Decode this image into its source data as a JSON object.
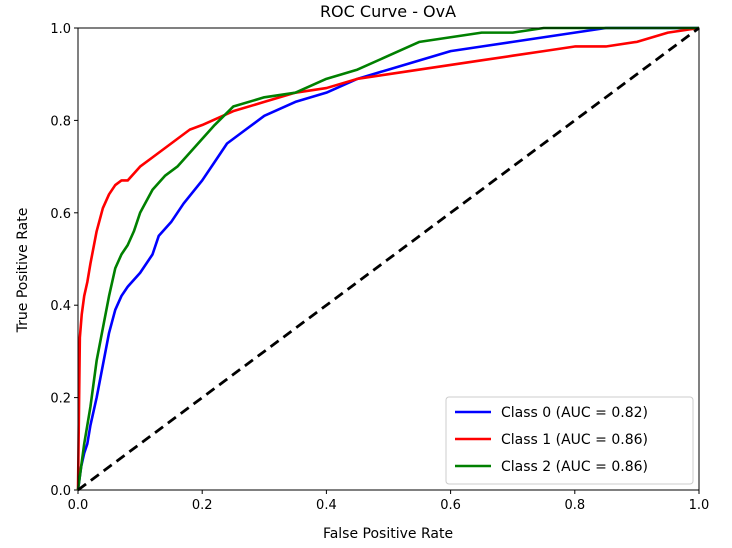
{
  "chart_data": {
    "type": "line",
    "title": "ROC Curve - OvA",
    "xlabel": "False Positive Rate",
    "ylabel": "True Positive Rate",
    "xlim": [
      0,
      1
    ],
    "ylim": [
      0,
      1
    ],
    "xticks": [
      "0.0",
      "0.2",
      "0.4",
      "0.6",
      "0.8",
      "1.0"
    ],
    "yticks": [
      "0.0",
      "0.2",
      "0.4",
      "0.6",
      "0.8",
      "1.0"
    ],
    "grid": false,
    "legend_position": "lower-right",
    "series": [
      {
        "name": "Class 0 (AUC = 0.82)",
        "color": "#0000ff",
        "x": [
          0,
          0.005,
          0.01,
          0.015,
          0.02,
          0.03,
          0.04,
          0.05,
          0.06,
          0.07,
          0.08,
          0.1,
          0.12,
          0.13,
          0.15,
          0.17,
          0.2,
          0.22,
          0.24,
          0.26,
          0.3,
          0.35,
          0.4,
          0.45,
          0.5,
          0.55,
          0.6,
          0.65,
          0.7,
          0.75,
          0.8,
          0.85,
          0.9,
          0.95,
          1.0
        ],
        "y": [
          0,
          0.05,
          0.08,
          0.1,
          0.14,
          0.2,
          0.27,
          0.34,
          0.39,
          0.42,
          0.44,
          0.47,
          0.51,
          0.55,
          0.58,
          0.62,
          0.67,
          0.71,
          0.75,
          0.77,
          0.81,
          0.84,
          0.86,
          0.89,
          0.91,
          0.93,
          0.95,
          0.96,
          0.97,
          0.98,
          0.99,
          1.0,
          1.0,
          1.0,
          1.0
        ]
      },
      {
        "name": "Class 1 (AUC = 0.86)",
        "color": "#ff0000",
        "x": [
          0,
          0.003,
          0.006,
          0.01,
          0.015,
          0.02,
          0.03,
          0.04,
          0.05,
          0.06,
          0.07,
          0.08,
          0.1,
          0.12,
          0.14,
          0.16,
          0.18,
          0.2,
          0.25,
          0.3,
          0.35,
          0.4,
          0.45,
          0.5,
          0.55,
          0.6,
          0.65,
          0.7,
          0.75,
          0.8,
          0.85,
          0.9,
          0.95,
          1.0
        ],
        "y": [
          0,
          0.33,
          0.38,
          0.42,
          0.45,
          0.49,
          0.56,
          0.61,
          0.64,
          0.66,
          0.67,
          0.67,
          0.7,
          0.72,
          0.74,
          0.76,
          0.78,
          0.79,
          0.82,
          0.84,
          0.86,
          0.87,
          0.89,
          0.9,
          0.91,
          0.92,
          0.93,
          0.94,
          0.95,
          0.96,
          0.96,
          0.97,
          0.99,
          1.0
        ]
      },
      {
        "name": "Class 2 (AUC = 0.86)",
        "color": "#008000",
        "x": [
          0,
          0.005,
          0.01,
          0.02,
          0.03,
          0.04,
          0.05,
          0.06,
          0.07,
          0.08,
          0.09,
          0.1,
          0.12,
          0.14,
          0.16,
          0.18,
          0.2,
          0.22,
          0.25,
          0.3,
          0.35,
          0.4,
          0.45,
          0.5,
          0.55,
          0.6,
          0.65,
          0.7,
          0.75,
          0.8,
          0.85,
          0.9,
          0.95,
          1.0
        ],
        "y": [
          0,
          0.05,
          0.1,
          0.18,
          0.28,
          0.35,
          0.42,
          0.48,
          0.51,
          0.53,
          0.56,
          0.6,
          0.65,
          0.68,
          0.7,
          0.73,
          0.76,
          0.79,
          0.83,
          0.85,
          0.86,
          0.89,
          0.91,
          0.94,
          0.97,
          0.98,
          0.99,
          0.99,
          1.0,
          1.0,
          1.0,
          1.0,
          1.0,
          1.0
        ]
      }
    ],
    "reference_line": {
      "x": [
        0,
        1
      ],
      "y": [
        0,
        1
      ],
      "color": "#000000",
      "style": "dashed"
    }
  }
}
